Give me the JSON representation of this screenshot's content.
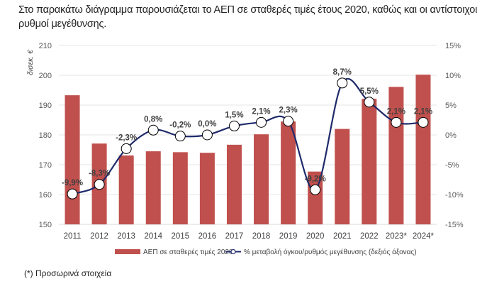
{
  "intro_text": "Στο παρακάτω διάγραμμα παρουσιάζεται το ΑΕΠ σε σταθερές τιμές έτους 2020, καθώς και οι αντίστοιχοι ρυθμοί μεγέθυνσης.",
  "footnote": "(*) Προσωρινά στοιχεία",
  "colors": {
    "bar": "#C0504D",
    "line": "#1F2A6B",
    "marker_fill": "#FFFFFF",
    "grid": "#E6E6E6"
  },
  "chart_data": {
    "type": "bar+line",
    "title": "",
    "categories": [
      "2011",
      "2012",
      "2013",
      "2014",
      "2015",
      "2016",
      "2017",
      "2018",
      "2019",
      "2020",
      "2021",
      "2022",
      "2023*",
      "2024*"
    ],
    "series": [
      {
        "name": "ΑΕΠ σε σταθερές τιμές 2020",
        "type": "bar",
        "axis": "left",
        "values": [
          193.3,
          177.1,
          173.1,
          174.5,
          174.2,
          174.0,
          176.7,
          180.2,
          184.5,
          167.7,
          182.0,
          192.1,
          196.1,
          200.2
        ]
      },
      {
        "name": "% μεταβολή όγκου/ρυθμός μεγέθυνσης (δεξιός άξονας)",
        "type": "line",
        "axis": "right",
        "values": [
          -9.9,
          -8.3,
          -2.3,
          0.8,
          -0.2,
          0.0,
          1.5,
          2.1,
          2.3,
          -9.2,
          8.7,
          5.5,
          2.1,
          2.1
        ],
        "data_labels": [
          "-9,9%",
          "-8,3%",
          "-2,3%",
          "0,8%",
          "-0,2%",
          "0,0%",
          "1,5%",
          "2,1%",
          "2,3%",
          "-9,2%",
          "8,7%",
          "5,5%",
          "2,1%",
          "2,1%"
        ]
      }
    ],
    "ylabel": "δισεκ. €",
    "ylim": [
      150,
      210
    ],
    "yticks": [
      "210",
      "200",
      "190",
      "180",
      "170",
      "160",
      "150"
    ],
    "ytick_values": [
      210,
      200,
      190,
      180,
      170,
      160,
      150
    ],
    "y2lim": [
      -15,
      15
    ],
    "y2ticks": [
      "15%",
      "10%",
      "5%",
      "0%",
      "-5%",
      "-10%",
      "-15%"
    ],
    "y2tick_values": [
      15,
      10,
      5,
      0,
      -5,
      -10,
      -15
    ],
    "grid": true,
    "legend_position": "bottom"
  }
}
